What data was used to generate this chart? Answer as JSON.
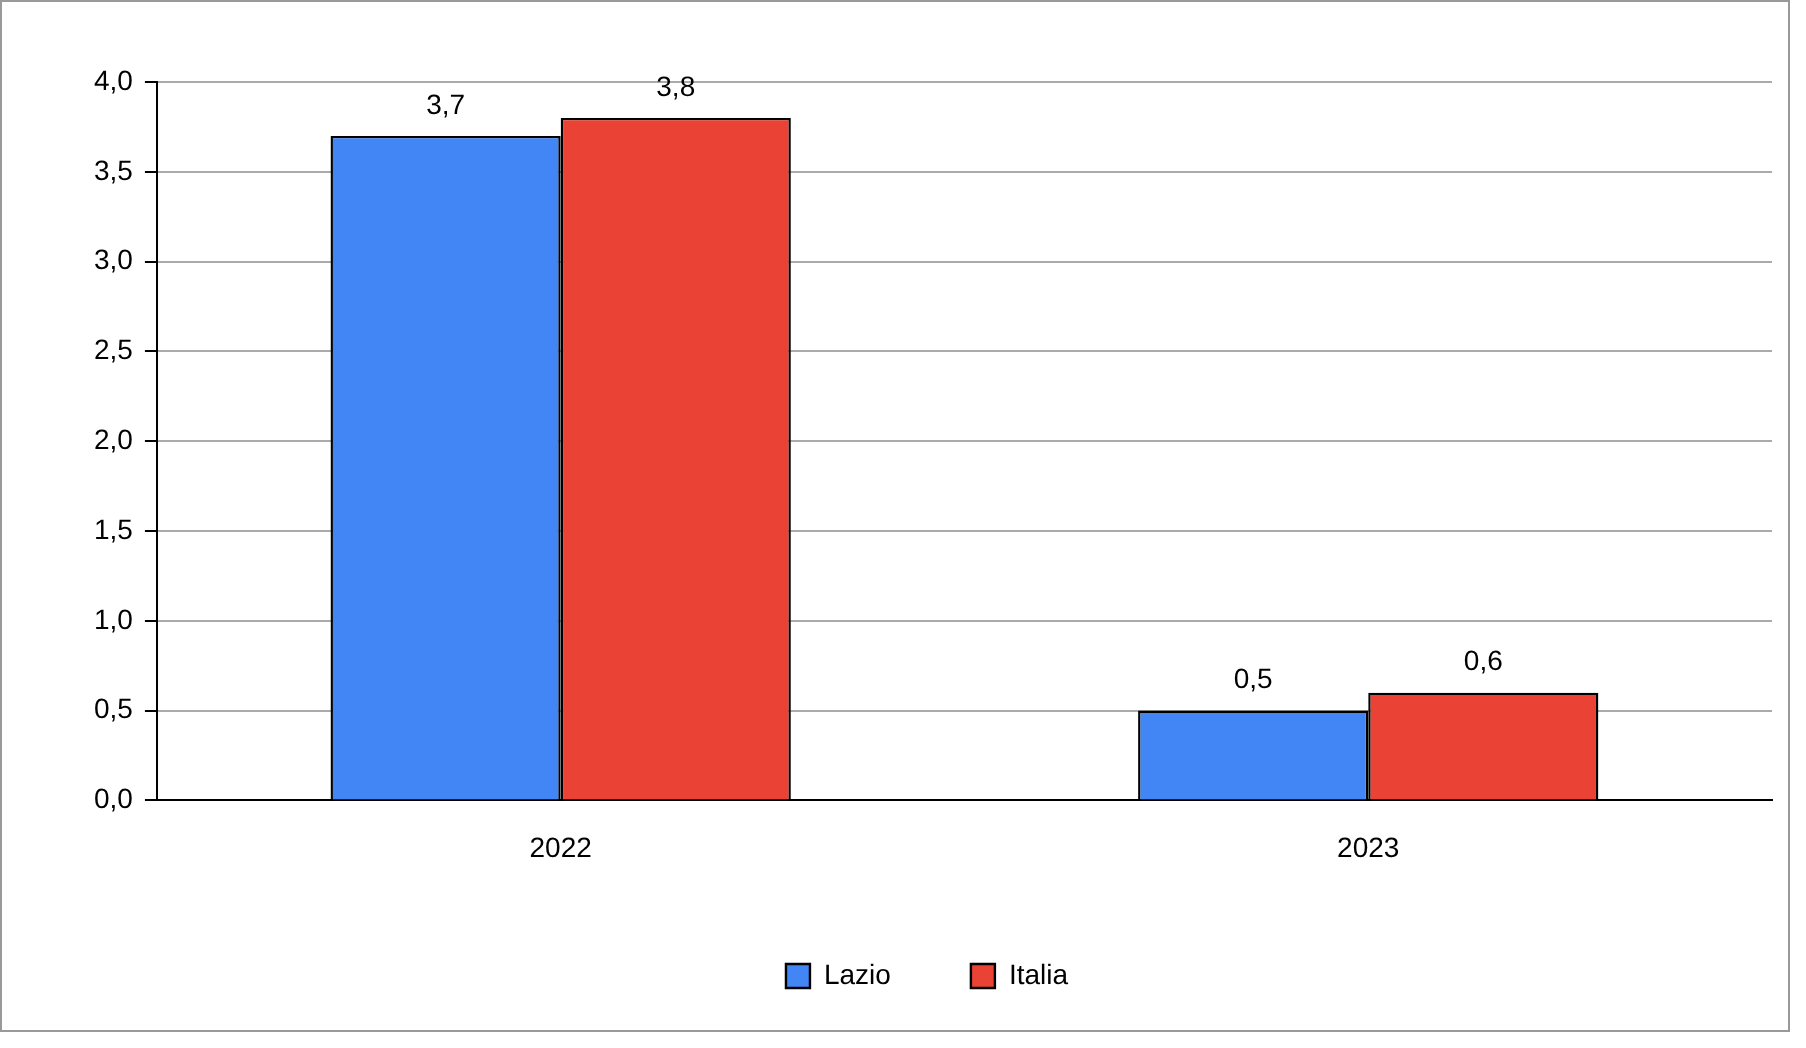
{
  "chart_data": {
    "type": "bar",
    "categories": [
      "2022",
      "2023"
    ],
    "series": [
      {
        "name": "Lazio",
        "color": "#4285f4",
        "values": [
          3.7,
          0.5
        ],
        "value_labels": [
          "3,7",
          "0,5"
        ]
      },
      {
        "name": "Italia",
        "color": "#ea4335",
        "values": [
          3.8,
          0.6
        ],
        "value_labels": [
          "3,8",
          "0,6"
        ]
      }
    ],
    "ylim": [
      0,
      4
    ],
    "yticks": [
      {
        "value": 0,
        "label": "0,0"
      },
      {
        "value": 0.5,
        "label": "0,5"
      },
      {
        "value": 1,
        "label": "1,0"
      },
      {
        "value": 1.5,
        "label": "1,5"
      },
      {
        "value": 2,
        "label": "2,0"
      },
      {
        "value": 2.5,
        "label": "2,5"
      },
      {
        "value": 3,
        "label": "3,0"
      },
      {
        "value": 3.5,
        "label": "3,5"
      },
      {
        "value": 4,
        "label": "4,0"
      }
    ],
    "grid": "y",
    "legend": "bottom"
  }
}
